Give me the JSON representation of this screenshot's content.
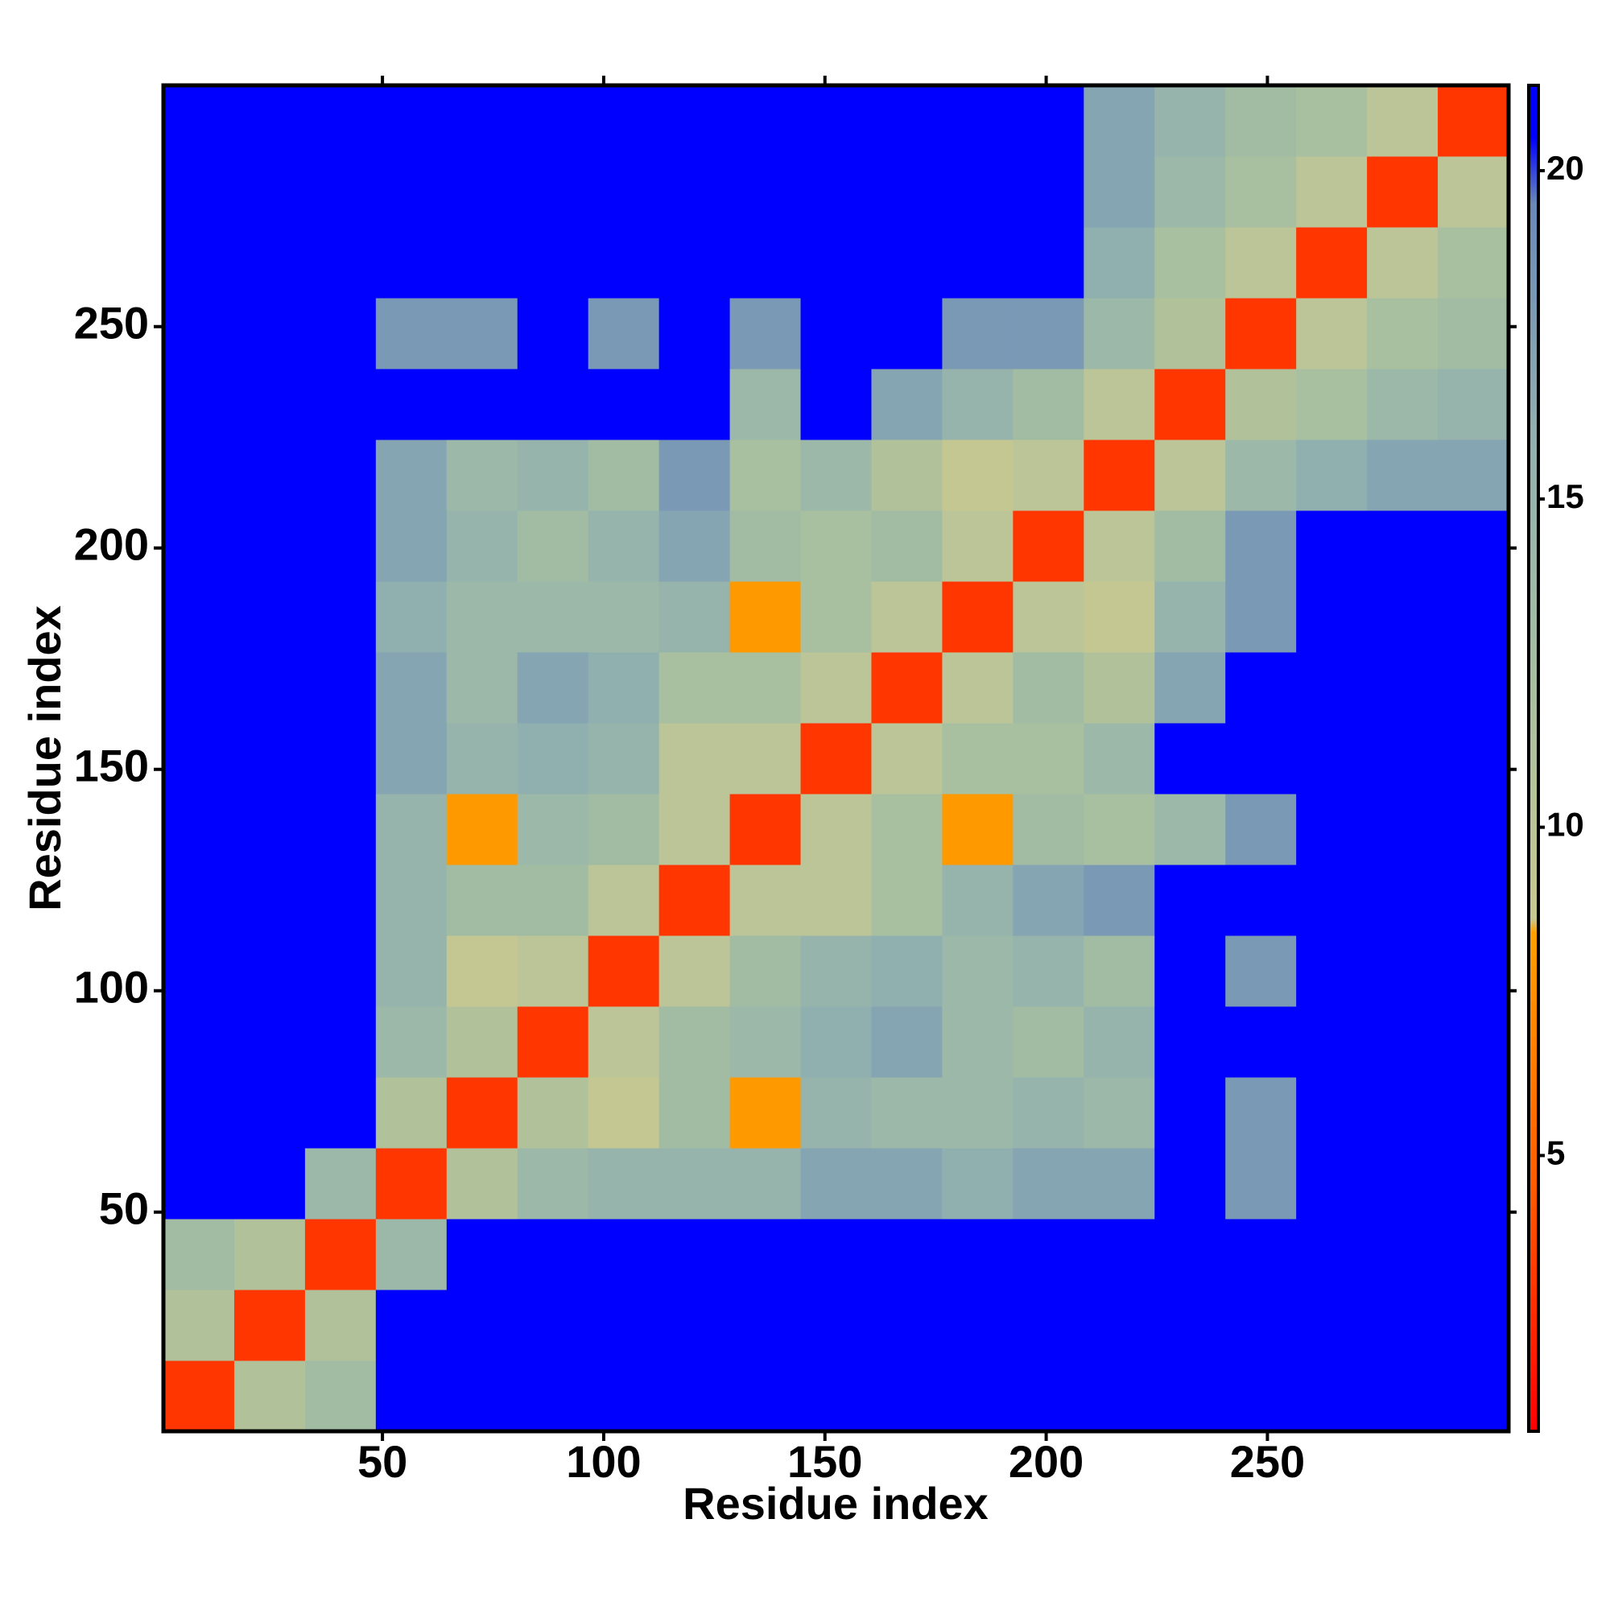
{
  "chart_data": {
    "type": "heatmap",
    "x_label": "Residue index",
    "y_label": "Residue index",
    "x": [
      8.5,
      24.5,
      40.5,
      56.5,
      72.5,
      88.5,
      104.5,
      120.5,
      136.5,
      152.5,
      168.5,
      184.5,
      200.5,
      216.5,
      232.5,
      248.5,
      264.5,
      280.5,
      296.5
    ],
    "y": [
      8.5,
      24.5,
      40.5,
      56.5,
      72.5,
      88.5,
      104.5,
      120.5,
      136.5,
      152.5,
      168.5,
      184.5,
      200.5,
      216.5,
      232.5,
      248.5,
      264.5,
      280.5,
      296.5
    ],
    "z": [
      [
        3,
        11,
        13,
        21,
        21,
        21,
        21,
        21,
        21,
        21,
        21,
        21,
        21,
        21,
        21,
        21,
        21,
        21,
        21
      ],
      [
        11,
        3,
        11,
        21,
        21,
        21,
        21,
        21,
        21,
        21,
        21,
        21,
        21,
        21,
        21,
        21,
        21,
        21,
        21
      ],
      [
        13,
        11,
        3,
        14,
        21,
        21,
        21,
        21,
        21,
        21,
        21,
        21,
        21,
        21,
        21,
        21,
        21,
        21,
        21
      ],
      [
        21,
        21,
        14,
        3,
        11,
        14,
        15,
        15,
        15,
        17,
        17,
        16,
        17,
        17,
        21,
        18,
        21,
        21,
        21
      ],
      [
        21,
        21,
        21,
        11,
        3,
        11,
        9,
        13,
        8,
        15,
        14,
        14,
        15,
        14,
        21,
        18,
        21,
        21,
        21
      ],
      [
        21,
        21,
        21,
        14,
        11,
        3,
        10,
        13,
        14,
        16,
        17,
        14,
        13,
        15,
        21,
        21,
        21,
        21,
        21
      ],
      [
        21,
        21,
        21,
        15,
        9,
        10,
        3,
        10,
        13,
        15,
        16,
        14,
        15,
        13,
        21,
        18,
        21,
        21,
        21
      ],
      [
        21,
        21,
        21,
        15,
        13,
        13,
        10,
        3,
        10,
        10,
        12,
        15,
        17,
        18,
        21,
        21,
        21,
        21,
        21
      ],
      [
        21,
        21,
        21,
        15,
        8,
        14,
        13,
        10,
        3,
        10,
        12,
        8,
        13,
        12,
        14,
        18,
        21,
        21,
        21
      ],
      [
        21,
        21,
        21,
        17,
        15,
        16,
        15,
        10,
        10,
        3,
        10,
        12,
        12,
        14,
        21,
        21,
        21,
        21,
        21
      ],
      [
        21,
        21,
        21,
        17,
        14,
        17,
        16,
        12,
        12,
        10,
        3,
        10,
        13,
        11,
        17,
        21,
        21,
        21,
        21
      ],
      [
        21,
        21,
        21,
        16,
        14,
        14,
        14,
        15,
        8,
        12,
        10,
        3,
        10,
        9,
        15,
        18,
        21,
        21,
        21
      ],
      [
        21,
        21,
        21,
        17,
        15,
        13,
        15,
        17,
        13,
        12,
        13,
        10,
        3,
        10,
        13,
        18,
        21,
        21,
        21
      ],
      [
        21,
        21,
        21,
        17,
        14,
        15,
        13,
        18,
        12,
        14,
        11,
        9,
        10,
        3,
        10,
        14,
        16,
        17,
        17
      ],
      [
        21,
        21,
        21,
        21,
        21,
        21,
        21,
        21,
        14,
        21,
        17,
        15,
        13,
        10,
        3,
        11,
        12,
        14,
        15
      ],
      [
        21,
        21,
        21,
        18,
        18,
        21,
        18,
        21,
        18,
        21,
        21,
        18,
        18,
        14,
        11,
        3,
        10,
        12,
        13
      ],
      [
        21,
        21,
        21,
        21,
        21,
        21,
        21,
        21,
        21,
        21,
        21,
        21,
        21,
        16,
        12,
        10,
        3,
        10,
        12
      ],
      [
        21,
        21,
        21,
        21,
        21,
        21,
        21,
        21,
        21,
        21,
        21,
        21,
        21,
        17,
        14,
        12,
        10,
        3,
        10
      ],
      [
        21,
        21,
        21,
        21,
        21,
        21,
        21,
        21,
        21,
        21,
        21,
        21,
        21,
        17,
        15,
        13,
        12,
        10,
        3
      ]
    ],
    "xlim": [
      0.5,
      304.5
    ],
    "ylim": [
      0.5,
      304.5
    ],
    "xticks": [
      50,
      100,
      150,
      200,
      250
    ],
    "yticks": [
      50,
      100,
      150,
      200,
      250
    ],
    "zlim": [
      0.8,
      21.3
    ],
    "zticks": [
      5,
      10,
      15,
      20
    ],
    "colorscale": [
      [
        0.8,
        "#ff0000"
      ],
      [
        4.5,
        "#ff5a00"
      ],
      [
        8.4,
        "#ffa000"
      ],
      [
        8.6,
        "#c8c890"
      ],
      [
        12,
        "#a8c0a0"
      ],
      [
        16,
        "#90b0b0"
      ],
      [
        19.5,
        "#6a88b8"
      ],
      [
        20.5,
        "#0000ff"
      ],
      [
        21.3,
        "#0000ff"
      ]
    ]
  }
}
